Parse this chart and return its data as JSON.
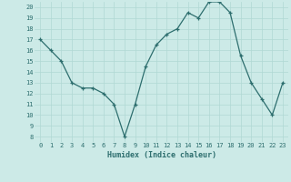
{
  "xlabel": "Humidex (Indice chaleur)",
  "x": [
    0,
    1,
    2,
    3,
    4,
    5,
    6,
    7,
    8,
    9,
    10,
    11,
    12,
    13,
    14,
    15,
    16,
    17,
    18,
    19,
    20,
    21,
    22,
    23
  ],
  "y": [
    17,
    16,
    15,
    13,
    12.5,
    12.5,
    12,
    11,
    8,
    11,
    14.5,
    16.5,
    17.5,
    18,
    19.5,
    19,
    20.5,
    20.5,
    19.5,
    15.5,
    13,
    11.5,
    10,
    13
  ],
  "line_color": "#2d6e6e",
  "marker": "+",
  "marker_size": 3,
  "bg_color": "#cceae7",
  "grid_color": "#b0d8d4",
  "tick_color": "#2d6e6e",
  "label_color": "#2d6e6e",
  "ylim": [
    7.5,
    20.5
  ],
  "yticks": [
    8,
    9,
    10,
    11,
    12,
    13,
    14,
    15,
    16,
    17,
    18,
    19,
    20
  ],
  "xticks": [
    0,
    1,
    2,
    3,
    4,
    5,
    6,
    7,
    8,
    9,
    10,
    11,
    12,
    13,
    14,
    15,
    16,
    17,
    18,
    19,
    20,
    21,
    22,
    23
  ],
  "xlim": [
    -0.5,
    23.5
  ]
}
